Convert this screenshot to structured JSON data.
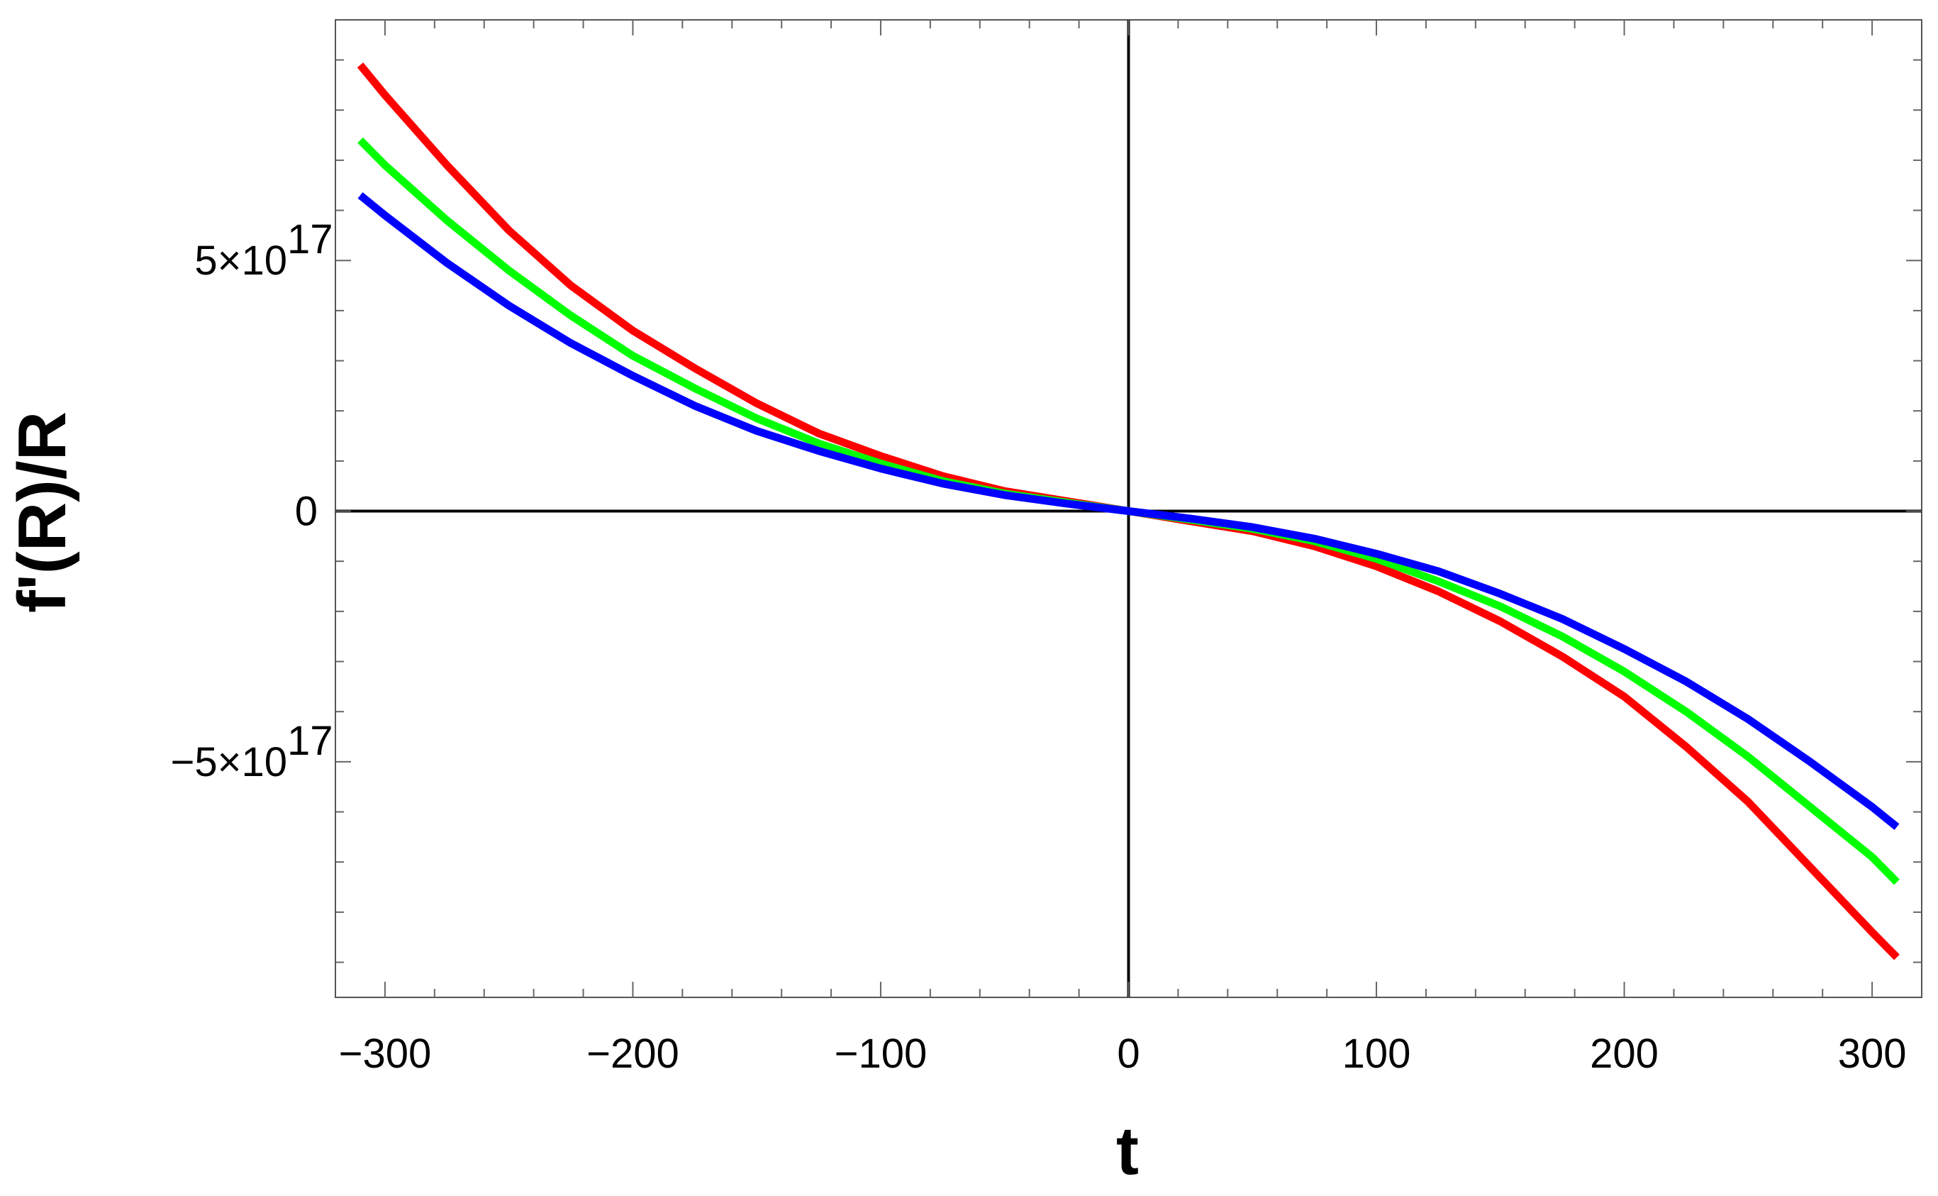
{
  "chart_data": {
    "type": "line",
    "title": "",
    "xlabel": "t",
    "ylabel": "f'(R)/R",
    "xlim": [
      -320,
      320
    ],
    "ylim": [
      -9.7e+17,
      9.8e+17
    ],
    "grid": false,
    "legend": "none",
    "frame_ticks": true,
    "x_ticks": [
      {
        "value": -300,
        "label": "−300"
      },
      {
        "value": -200,
        "label": "−200"
      },
      {
        "value": -100,
        "label": "−100"
      },
      {
        "value": 0,
        "label": "0"
      },
      {
        "value": 100,
        "label": "100"
      },
      {
        "value": 200,
        "label": "200"
      },
      {
        "value": 300,
        "label": "300"
      }
    ],
    "y_ticks": [
      {
        "value": 5e+17,
        "mantissa": "5",
        "exponent": "17"
      },
      {
        "value": 0,
        "mantissa": "0",
        "exponent": ""
      },
      {
        "value": -5e+17,
        "mantissa": "−5",
        "exponent": "17"
      }
    ],
    "series": [
      {
        "color": "#ff0000",
        "x": [
          -310,
          -300,
          -275,
          -250,
          -225,
          -200,
          -175,
          -150,
          -125,
          -100,
          -75,
          -50,
          -25,
          0,
          25,
          50,
          75,
          100,
          125,
          150,
          175,
          200,
          225,
          250,
          275,
          300,
          310
        ],
        "y": [
          8.9e+17,
          8.3e+17,
          6.9e+17,
          5.6e+17,
          4.5e+17,
          3.6e+17,
          2.85e+17,
          2.15e+17,
          1.55e+17,
          1.1e+17,
          7e+16,
          4e+16,
          2e+16,
          0,
          -2e+16,
          -4e+16,
          -7e+16,
          -1.1e+17,
          -1.6e+17,
          -2.2e+17,
          -2.9e+17,
          -3.7e+17,
          -4.7e+17,
          -5.8e+17,
          -7.1e+17,
          -8.4e+17,
          -8.9e+17
        ]
      },
      {
        "color": "#00ff00",
        "x": [
          -310,
          -300,
          -275,
          -250,
          -225,
          -200,
          -175,
          -150,
          -125,
          -100,
          -75,
          -50,
          -25,
          0,
          25,
          50,
          75,
          100,
          125,
          150,
          175,
          200,
          225,
          250,
          275,
          300,
          310
        ],
        "y": [
          7.4e+17,
          6.9e+17,
          5.8e+17,
          4.8e+17,
          3.9e+17,
          3.1e+17,
          2.45e+17,
          1.85e+17,
          1.35e+17,
          9.5e+16,
          6e+16,
          3.5e+16,
          1.7e+16,
          0,
          -1.7e+16,
          -3.5e+16,
          -6e+16,
          -9.5e+16,
          -1.4e+17,
          -1.9e+17,
          -2.5e+17,
          -3.2e+17,
          -4e+17,
          -4.9e+17,
          -5.9e+17,
          -6.9e+17,
          -7.4e+17
        ]
      },
      {
        "color": "#0000ff",
        "x": [
          -310,
          -300,
          -275,
          -250,
          -225,
          -200,
          -175,
          -150,
          -125,
          -100,
          -75,
          -50,
          -25,
          0,
          25,
          50,
          75,
          100,
          125,
          150,
          175,
          200,
          225,
          250,
          275,
          300,
          310
        ],
        "y": [
          6.3e+17,
          5.9e+17,
          4.95e+17,
          4.1e+17,
          3.35e+17,
          2.7e+17,
          2.1e+17,
          1.6e+17,
          1.2e+17,
          8.5e+16,
          5.5e+16,
          3.2e+16,
          1.5e+16,
          0,
          -1.5e+16,
          -3.2e+16,
          -5.5e+16,
          -8.5e+16,
          -1.2e+17,
          -1.65e+17,
          -2.15e+17,
          -2.75e+17,
          -3.4e+17,
          -4.15e+17,
          -5e+17,
          -5.9e+17,
          -6.3e+17
        ]
      }
    ]
  }
}
